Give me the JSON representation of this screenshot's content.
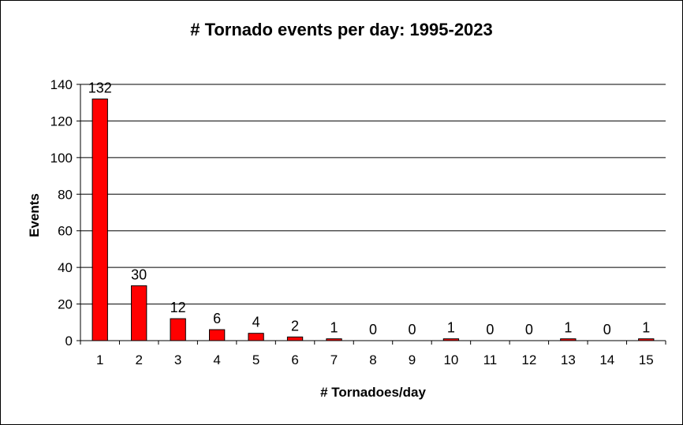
{
  "chart_data": {
    "type": "bar",
    "title": "# Tornado events per day: 1995-2023",
    "xlabel": "# Tornadoes/day",
    "ylabel": "Events",
    "categories": [
      "1",
      "2",
      "3",
      "4",
      "5",
      "6",
      "7",
      "8",
      "9",
      "10",
      "11",
      "12",
      "13",
      "14",
      "15"
    ],
    "values": [
      132,
      30,
      12,
      6,
      4,
      2,
      1,
      0,
      0,
      1,
      0,
      0,
      1,
      0,
      1
    ],
    "data_labels": [
      "132",
      "30",
      "12",
      "6",
      "4",
      "2",
      "1",
      "0",
      "0",
      "1",
      "0",
      "0",
      "1",
      "0",
      "1"
    ],
    "ylim": [
      0,
      140
    ],
    "yticks": [
      0,
      20,
      40,
      60,
      80,
      100,
      120,
      140
    ],
    "grid": true,
    "legend": "none",
    "bar_color": "#ff0000",
    "bar_edge_color": "#000000"
  }
}
